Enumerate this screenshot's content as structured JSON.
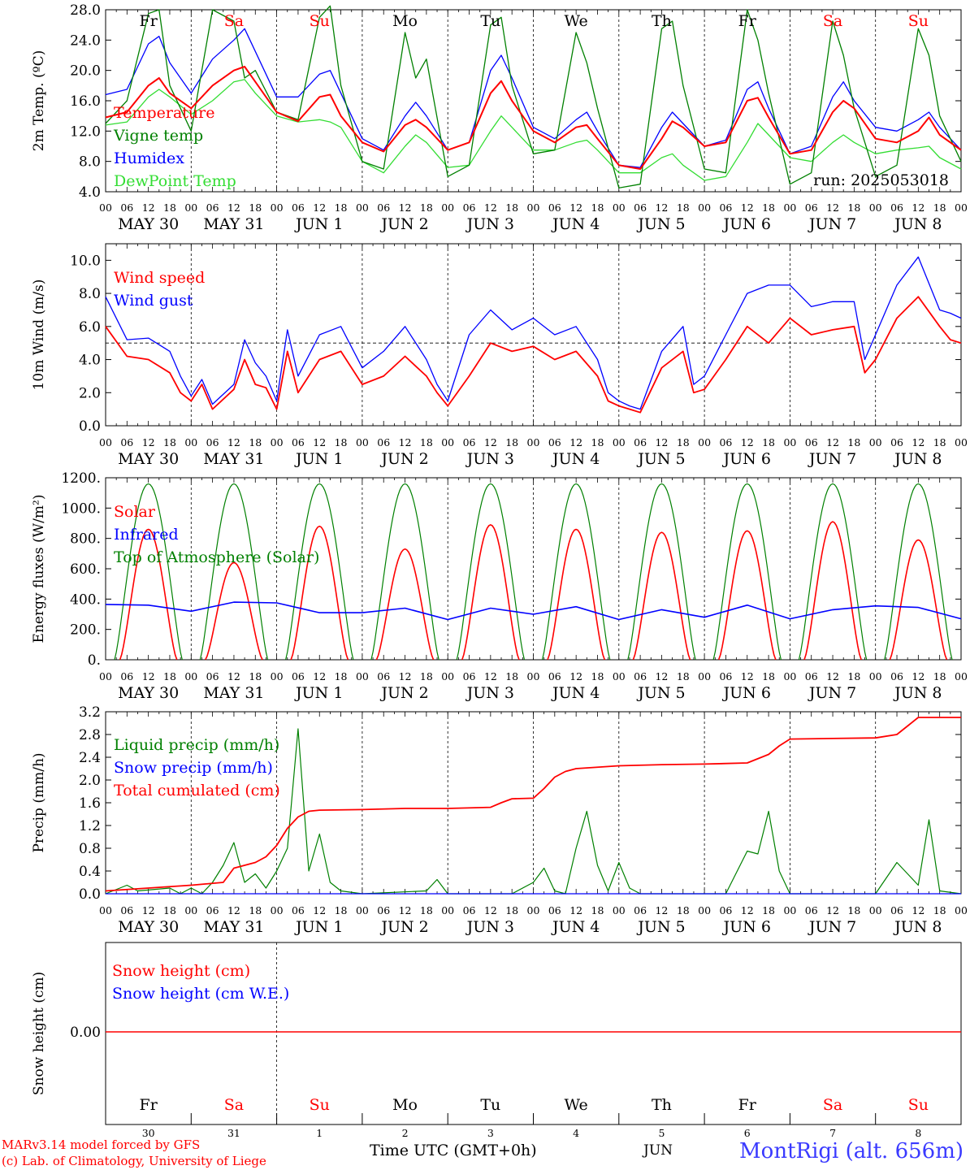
{
  "days": {
    "dates": [
      "MAY 30",
      "MAY 31",
      "JUN  1",
      "JUN  2",
      "JUN  3",
      "JUN  4",
      "JUN  5",
      "JUN  6",
      "JUN  7",
      "JUN  8"
    ],
    "weekdays": [
      "Fr",
      "Sa",
      "Su",
      "Mo",
      "Tu",
      "We",
      "Th",
      "Fr",
      "Sa",
      "Su"
    ],
    "day_numbers": [
      "30",
      "31",
      "1",
      "2",
      "3",
      "4",
      "5",
      "6",
      "7",
      "8"
    ],
    "hour_ticks": [
      "00",
      "06",
      "12",
      "18"
    ],
    "last_tick": "00"
  },
  "footer": {
    "credit_line1": "MARv3.14 model forced by GFS",
    "credit_line2": "(c) Lab. of Climatology, University of Liege",
    "xlabel": "Time UTC (GMT+0h)",
    "month": "JUN",
    "station": "MontRigi (alt. 656m)"
  },
  "colors": {
    "weekend": "#ff0000",
    "weekday": "#000000",
    "red": "#ff0000",
    "green": "#008000",
    "blue": "#0000ff",
    "lightgreen": "#33dd33"
  },
  "chart_data": [
    {
      "type": "line",
      "ylabel": "2m Temp. (ºC)",
      "yticks": [
        "4.0",
        "8.0",
        "12.0",
        "16.0",
        "20.0",
        "24.0",
        "28.0"
      ],
      "ylim": [
        4,
        28
      ],
      "run_label": "run: 2025053018",
      "x_hours": [
        0,
        6,
        12,
        15,
        18,
        24,
        30,
        36,
        39,
        42,
        48,
        54,
        60,
        63,
        66,
        72,
        78,
        84,
        87,
        90,
        96,
        102,
        108,
        111,
        114,
        120,
        126,
        132,
        135,
        138,
        144,
        150,
        156,
        159,
        162,
        168,
        174,
        180,
        183,
        186,
        192,
        198,
        204,
        207,
        210,
        216,
        222,
        228,
        231,
        234,
        240
      ],
      "series": [
        {
          "name": "Temperature",
          "color": "#ff0000",
          "values": [
            13.8,
            14.5,
            18.0,
            19.0,
            17.0,
            15.0,
            18.0,
            20.0,
            20.5,
            18.5,
            14.5,
            13.3,
            16.5,
            16.8,
            14.0,
            10.5,
            9.3,
            12.8,
            13.5,
            12.5,
            9.5,
            10.5,
            17.0,
            18.6,
            16.0,
            12.0,
            10.5,
            12.5,
            12.8,
            11.0,
            7.5,
            7.0,
            11.0,
            13.3,
            12.5,
            10.0,
            10.5,
            16.0,
            16.4,
            13.8,
            9.0,
            9.5,
            14.5,
            16.0,
            15.0,
            11.0,
            10.5,
            12.0,
            13.8,
            11.5,
            9.5
          ]
        },
        {
          "name": "Vigne temp",
          "color": "#008000",
          "values": [
            13.0,
            16.0,
            27.5,
            28.0,
            18.0,
            12.0,
            28.0,
            26.5,
            19.0,
            20.0,
            14.5,
            13.5,
            27.0,
            28.5,
            18.0,
            8.0,
            7.0,
            25.0,
            19.0,
            21.5,
            6.0,
            7.5,
            26.0,
            27.0,
            18.0,
            9.0,
            9.5,
            25.0,
            21.0,
            15.0,
            4.5,
            5.0,
            25.5,
            26.5,
            18.0,
            7.0,
            6.5,
            28.0,
            24.0,
            17.0,
            5.0,
            6.5,
            26.5,
            22.0,
            15.0,
            6.0,
            7.5,
            25.5,
            22.0,
            14.0,
            8.0
          ]
        },
        {
          "name": "Humidex",
          "color": "#0000ff",
          "values": [
            16.8,
            17.5,
            23.5,
            24.5,
            21.0,
            17.0,
            21.5,
            24.0,
            25.5,
            22.5,
            16.5,
            16.5,
            19.5,
            20.0,
            17.0,
            11.0,
            9.5,
            14.0,
            15.8,
            14.0,
            9.5,
            10.5,
            20.0,
            22.0,
            19.0,
            12.5,
            11.0,
            13.5,
            14.5,
            12.0,
            7.5,
            7.2,
            12.5,
            14.5,
            13.0,
            10.0,
            10.8,
            17.5,
            18.5,
            15.0,
            9.0,
            10.0,
            16.5,
            18.5,
            16.0,
            12.5,
            12.0,
            13.5,
            14.5,
            12.5,
            9.5
          ]
        },
        {
          "name": "DewPoint Temp",
          "color": "#33dd33",
          "values": [
            12.8,
            13.2,
            16.5,
            17.5,
            16.5,
            14.2,
            16.0,
            18.5,
            18.8,
            17.0,
            14.0,
            13.2,
            13.5,
            13.2,
            12.5,
            8.0,
            6.5,
            10.0,
            11.5,
            10.5,
            7.2,
            7.5,
            12.0,
            14.0,
            12.5,
            9.5,
            9.5,
            10.5,
            10.8,
            9.5,
            6.5,
            6.5,
            8.5,
            9.0,
            7.5,
            5.5,
            6.0,
            10.5,
            13.0,
            11.5,
            8.5,
            8.0,
            10.5,
            11.5,
            10.5,
            9.0,
            9.5,
            9.8,
            10.0,
            8.5,
            7.0
          ]
        }
      ]
    },
    {
      "type": "line",
      "ylabel": "10m Wind (m/s)",
      "yticks": [
        "0.0",
        "2.0",
        "4.0",
        "6.0",
        "8.0",
        "10.0"
      ],
      "ylim": [
        0,
        11
      ],
      "reference_line": 5.0,
      "x_hours": [
        0,
        6,
        12,
        18,
        21,
        24,
        27,
        30,
        36,
        39,
        42,
        45,
        48,
        51,
        54,
        60,
        66,
        72,
        78,
        84,
        90,
        93,
        96,
        102,
        108,
        114,
        120,
        126,
        132,
        138,
        141,
        144,
        147,
        150,
        156,
        162,
        165,
        168,
        174,
        180,
        186,
        192,
        198,
        204,
        210,
        213,
        216,
        222,
        228,
        234,
        237,
        240
      ],
      "series": [
        {
          "name": "Wind speed",
          "color": "#ff0000",
          "values": [
            6.0,
            4.2,
            4.0,
            3.2,
            2.0,
            1.5,
            2.5,
            1.0,
            2.2,
            4.0,
            2.5,
            2.3,
            1.0,
            4.5,
            2.0,
            4.0,
            4.5,
            2.5,
            3.0,
            4.2,
            3.0,
            2.0,
            1.2,
            3.0,
            5.0,
            4.5,
            4.8,
            4.0,
            4.5,
            3.0,
            1.5,
            1.2,
            1.0,
            0.8,
            3.5,
            4.5,
            2.0,
            2.2,
            4.0,
            6.0,
            5.0,
            6.5,
            5.5,
            5.8,
            6.0,
            3.2,
            4.0,
            6.5,
            7.8,
            6.0,
            5.2,
            5.0
          ]
        },
        {
          "name": "Wind gust",
          "color": "#0000ff",
          "values": [
            7.8,
            5.2,
            5.3,
            4.5,
            3.0,
            1.8,
            2.8,
            1.3,
            2.5,
            5.2,
            3.8,
            3.0,
            1.5,
            5.8,
            3.0,
            5.5,
            6.0,
            3.5,
            4.5,
            6.0,
            4.0,
            2.5,
            1.5,
            5.5,
            7.0,
            5.8,
            6.5,
            5.5,
            6.0,
            4.0,
            2.0,
            1.5,
            1.2,
            1.0,
            4.5,
            6.0,
            2.5,
            3.0,
            5.5,
            8.0,
            8.5,
            8.5,
            7.2,
            7.5,
            7.5,
            4.0,
            5.5,
            8.5,
            10.2,
            7.0,
            6.8,
            6.5
          ]
        }
      ]
    },
    {
      "type": "line",
      "ylabel": "Energy fluxes (W/m²)",
      "yticks": [
        "0.",
        "200.",
        "400.",
        "600.",
        "800.",
        "1000.",
        "1200."
      ],
      "ylim": [
        0,
        1200
      ],
      "series": [
        {
          "name": "Solar",
          "color": "#ff0000",
          "daily_peaks": [
            860,
            640,
            880,
            730,
            890,
            860,
            840,
            850,
            910,
            790
          ]
        },
        {
          "name": "Infrared",
          "color": "#0000ff",
          "x_hours": [
            0,
            12,
            24,
            36,
            48,
            60,
            72,
            84,
            96,
            108,
            120,
            132,
            144,
            156,
            168,
            180,
            192,
            204,
            216,
            228,
            240
          ],
          "values": [
            365,
            360,
            320,
            380,
            375,
            310,
            310,
            340,
            265,
            340,
            300,
            350,
            265,
            330,
            280,
            360,
            270,
            330,
            355,
            345,
            270
          ]
        },
        {
          "name": "Top of Atmosphere (Solar)",
          "color": "#008000",
          "daily_peak": 1160
        }
      ]
    },
    {
      "type": "line",
      "ylabel": "Precip (mm/h)",
      "yticks": [
        "0.0",
        "0.4",
        "0.8",
        "1.2",
        "1.6",
        "2.0",
        "2.4",
        "2.8",
        "3.2"
      ],
      "ylim": [
        0,
        3.2
      ],
      "series": [
        {
          "name": "Liquid precip (mm/h)",
          "color": "#008000",
          "x_hours": [
            0,
            6,
            9,
            18,
            21,
            24,
            27,
            30,
            33,
            36,
            39,
            42,
            45,
            48,
            51,
            54,
            57,
            60,
            63,
            66,
            72,
            90,
            93,
            96,
            114,
            120,
            123,
            126,
            129,
            132,
            135,
            138,
            141,
            144,
            147,
            150,
            174,
            180,
            183,
            186,
            189,
            192,
            216,
            222,
            225,
            228,
            231,
            234,
            240
          ],
          "values": [
            0,
            0.15,
            0.05,
            0.1,
            0.0,
            0.1,
            0.0,
            0.2,
            0.5,
            0.9,
            0.2,
            0.35,
            0.1,
            0.4,
            0.8,
            2.9,
            0.4,
            1.05,
            0.2,
            0.05,
            0.0,
            0.05,
            0.25,
            0.0,
            0.0,
            0.2,
            0.45,
            0.05,
            0.0,
            0.8,
            1.45,
            0.5,
            0.05,
            0.55,
            0.1,
            0.0,
            0.0,
            0.75,
            0.7,
            1.45,
            0.4,
            0.0,
            0.0,
            0.55,
            0.35,
            0.15,
            1.3,
            0.05,
            0.0
          ]
        },
        {
          "name": "Snow precip (mm/h)",
          "color": "#0000ff",
          "x_hours": [
            0,
            240
          ],
          "values": [
            0,
            0
          ]
        },
        {
          "name": "Total cumulated (cm)",
          "color": "#ff0000",
          "x_hours": [
            0,
            24,
            33,
            36,
            42,
            45,
            48,
            51,
            54,
            57,
            60,
            72,
            84,
            96,
            108,
            111,
            114,
            120,
            123,
            126,
            129,
            132,
            144,
            156,
            168,
            180,
            186,
            189,
            192,
            204,
            216,
            222,
            225,
            228,
            240
          ],
          "values": [
            0.05,
            0.15,
            0.2,
            0.45,
            0.55,
            0.65,
            0.85,
            1.15,
            1.35,
            1.45,
            1.47,
            1.48,
            1.5,
            1.5,
            1.52,
            1.6,
            1.67,
            1.68,
            1.85,
            2.05,
            2.15,
            2.2,
            2.25,
            2.27,
            2.28,
            2.3,
            2.45,
            2.6,
            2.72,
            2.73,
            2.74,
            2.8,
            2.95,
            3.1,
            3.1
          ]
        }
      ]
    },
    {
      "type": "line",
      "ylabel": "Snow height (cm)",
      "yticks": [
        "0.00"
      ],
      "series": [
        {
          "name": "Snow height (cm)",
          "color": "#ff0000",
          "values": [
            0.0,
            0.0
          ]
        },
        {
          "name": "Snow height (cm W.E.)",
          "color": "#0000ff",
          "values": [
            0.0,
            0.0
          ]
        }
      ]
    }
  ]
}
